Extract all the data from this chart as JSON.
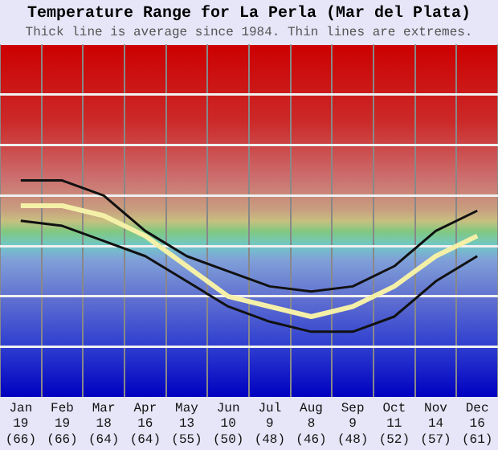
{
  "chart_data": {
    "type": "line",
    "title": "Temperature Range for La Perla (Mar del Plata)",
    "subtitle": "Thick line is average since 1984. Thin lines are extremes.",
    "categories": [
      "Jan",
      "Feb",
      "Mar",
      "Apr",
      "May",
      "Jun",
      "Jul",
      "Aug",
      "Sep",
      "Oct",
      "Nov",
      "Dec"
    ],
    "series": [
      {
        "color": "#111111",
        "values": [
          21.5,
          21.5,
          20,
          16.5,
          14,
          12.5,
          11,
          10.5,
          11,
          13,
          16.5,
          18.5
        ]
      },
      {
        "color": "#111111",
        "values": [
          17.5,
          17,
          15.5,
          14,
          11.5,
          9,
          7.5,
          6.5,
          6.5,
          8,
          11.5,
          14
        ]
      },
      {
        "color": "#f4f0a8",
        "values": [
          19,
          19,
          18,
          16,
          13,
          10,
          9,
          8,
          9,
          11,
          14,
          16
        ],
        "value_labels": [
          "19 (66)",
          "19 (66)",
          "18 (64)",
          "16 (64)",
          "13 (55)",
          "10 (50)",
          "9 (48)",
          "8 (46)",
          "9 (48)",
          "11 (52)",
          "14 (57)",
          "16 (61)"
        ]
      }
    ],
    "ylim": [
      0,
      35
    ],
    "yticks": [
      {
        "value": 5,
        "label": null
      },
      {
        "value": 10,
        "label": null
      },
      {
        "value": 15,
        "label": null
      },
      {
        "value": 20,
        "label": null
      },
      {
        "value": 25,
        "label": null
      },
      {
        "value": 30,
        "label": null
      }
    ],
    "grid": true,
    "tick_labels": "x",
    "marker": "none",
    "line_style": "solid"
  }
}
